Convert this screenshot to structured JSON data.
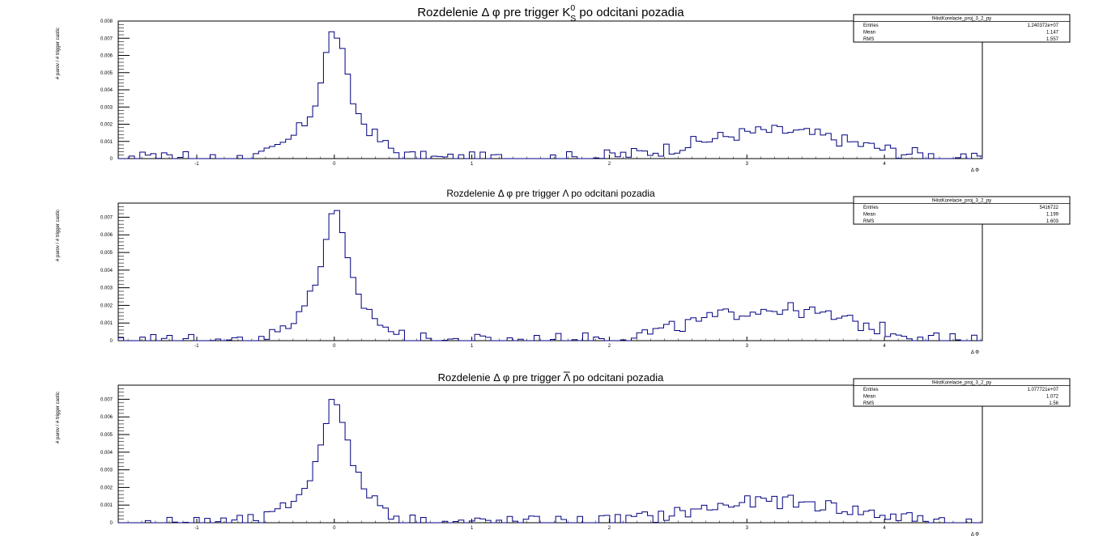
{
  "chart_data": [
    {
      "type": "histogram",
      "title_prefix": "Rozdelenie ",
      "title_mid": " pre trigger ",
      "title_particle": "K",
      "title_particle_sup": "0",
      "title_particle_sub": "S",
      "title_suffix": " po odcitani pozadia",
      "ylabel": "# parov / # trigger castic",
      "xlabel": "Δ Φ",
      "xlim": [
        -1.571,
        4.712
      ],
      "ylim": [
        0,
        0.008
      ],
      "xticks": [
        -1,
        0,
        1,
        2,
        3,
        4
      ],
      "yticks": [
        0,
        0.001,
        0.002,
        0.003,
        0.004,
        0.005,
        0.006,
        0.007,
        0.008
      ],
      "series_color": "#000080",
      "stats": {
        "name": "fHistKorelacie_proj_3_2_py",
        "rows": [
          [
            "Entries",
            "1.240372e+07"
          ],
          [
            "Mean",
            "1.147"
          ],
          [
            "RMS",
            "1.557"
          ]
        ]
      },
      "peak_value": 0.0074,
      "away_value": 0.0016
    },
    {
      "type": "histogram",
      "title_prefix": "Rozdelenie ",
      "title_mid": " pre trigger ",
      "title_particle": "Λ",
      "title_particle_sup": "",
      "title_particle_sub": "",
      "title_suffix": " po odcitani pozadia",
      "ylabel": "# parov / # trigger castic",
      "xlabel": "Δ Φ",
      "xlim": [
        -1.571,
        4.712
      ],
      "ylim": [
        0,
        0.0078
      ],
      "xticks": [
        -1,
        0,
        1,
        2,
        3,
        4
      ],
      "yticks": [
        0,
        0.001,
        0.002,
        0.003,
        0.004,
        0.005,
        0.006,
        0.007
      ],
      "series_color": "#000080",
      "stats": {
        "name": "fHistKorelacie_proj_3_2_py",
        "rows": [
          [
            "Entries",
            "5416722"
          ],
          [
            "Mean",
            "1.199"
          ],
          [
            "RMS",
            "1.603"
          ]
        ]
      },
      "peak_value": 0.0072,
      "away_value": 0.0018
    },
    {
      "type": "histogram",
      "title_prefix": "Rozdelenie ",
      "title_mid": " pre trigger ",
      "title_particle": "Λ",
      "title_particle_sup": "",
      "title_particle_sub": "",
      "title_particle_bar": true,
      "title_suffix": " po odcitani pozadia",
      "ylabel": "# parov / # trigger castic",
      "xlabel": "Δ Φ",
      "xlim": [
        -1.571,
        4.712
      ],
      "ylim": [
        0,
        0.0078
      ],
      "xticks": [
        -1,
        0,
        1,
        2,
        3,
        4
      ],
      "yticks": [
        0,
        0.001,
        0.002,
        0.003,
        0.004,
        0.005,
        0.006,
        0.007
      ],
      "series_color": "#000080",
      "stats": {
        "name": "fHistKorelacie_proj_3_2_py",
        "rows": [
          [
            "Entries",
            "1.077721e+07"
          ],
          [
            "Mean",
            "1.072"
          ],
          [
            "RMS",
            "1.56"
          ]
        ]
      },
      "peak_value": 0.0072,
      "away_value": 0.0012
    }
  ]
}
